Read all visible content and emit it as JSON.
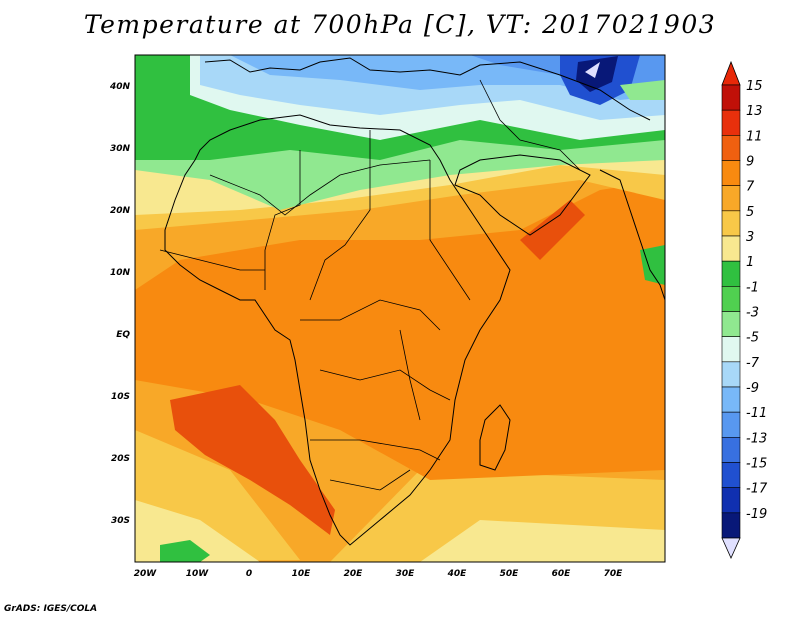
{
  "title": "Temperature at 700hPa [C], VT: 2017021903",
  "credit": "GrADS: IGES/COLA",
  "lat_labels": [
    "40N",
    "30N",
    "20N",
    "10N",
    "EQ",
    "10S",
    "20S",
    "30S"
  ],
  "lon_labels": [
    "20W",
    "10W",
    "0",
    "10E",
    "20E",
    "30E",
    "40E",
    "50E",
    "60E",
    "70E"
  ],
  "colorbar": {
    "labels": [
      "15",
      "13",
      "11",
      "9",
      "7",
      "5",
      "3",
      "1",
      "-1",
      "-3",
      "-5",
      "-7",
      "-9",
      "-11",
      "-13",
      "-15",
      "-17",
      "-19"
    ],
    "colors": [
      "#c01008",
      "#e8300c",
      "#f06010",
      "#f88a10",
      "#f8a828",
      "#f8c848",
      "#f8e890",
      "#30c040",
      "#50d050",
      "#90e890",
      "#e0f8f0",
      "#a8d8f8",
      "#78b8f8",
      "#5898f0",
      "#3870e0",
      "#2050d0",
      "#1030b0",
      "#081878"
    ],
    "top_arrow_color": "#e82808",
    "bottom_arrow_color": "#e0e0ff"
  },
  "map_colors": {
    "cold_north": "#78b8f8",
    "cool": "#a8d8f8",
    "green": "#30c040",
    "light_green": "#90e890",
    "pale": "#f8e890",
    "yellow": "#f8c848",
    "orange_light": "#f8a828",
    "orange": "#f88a10",
    "hot": "#e8500c",
    "very_cold": "#081878"
  }
}
